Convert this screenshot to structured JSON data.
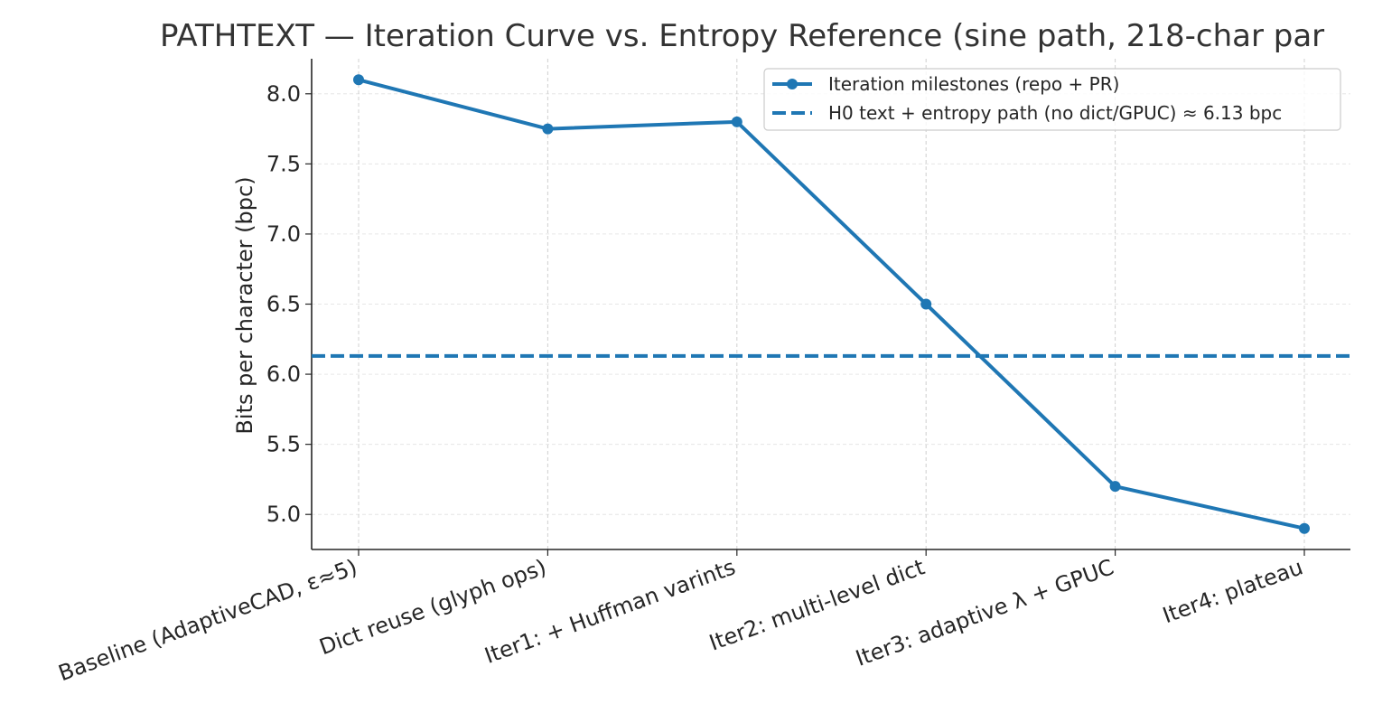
{
  "chart_data": {
    "type": "line",
    "title": "PATHTEXT — Iteration Curve vs. Entropy Reference (sine path, 218-char par",
    "xlabel": "",
    "ylabel": "Bits per character (bpc)",
    "categories": [
      "Baseline (AdaptiveCAD, ε≈5)",
      "Dict reuse (glyph ops)",
      "Iter1: + Huffman varints",
      "Iter2: multi-level dict",
      "Iter3: adaptive λ + GPUC",
      "Iter4: plateau"
    ],
    "series": [
      {
        "name": "Iteration milestones (repo + PR)",
        "values": [
          8.1,
          7.75,
          7.8,
          6.5,
          5.2,
          4.9
        ],
        "color": "#1f77b4",
        "style": "solid",
        "marker": "circle"
      }
    ],
    "reference_lines": [
      {
        "name": "H0 text + entropy path (no dict/GPUC) ≈ 6.13 bpc",
        "value": 6.13,
        "color": "#1f77b4",
        "style": "dashed"
      }
    ],
    "y_ticks": [
      "5.0",
      "5.5",
      "6.0",
      "6.5",
      "7.0",
      "7.5",
      "8.0"
    ],
    "ylim": [
      4.75,
      8.25
    ],
    "grid": true,
    "legend_position": "top-right"
  }
}
